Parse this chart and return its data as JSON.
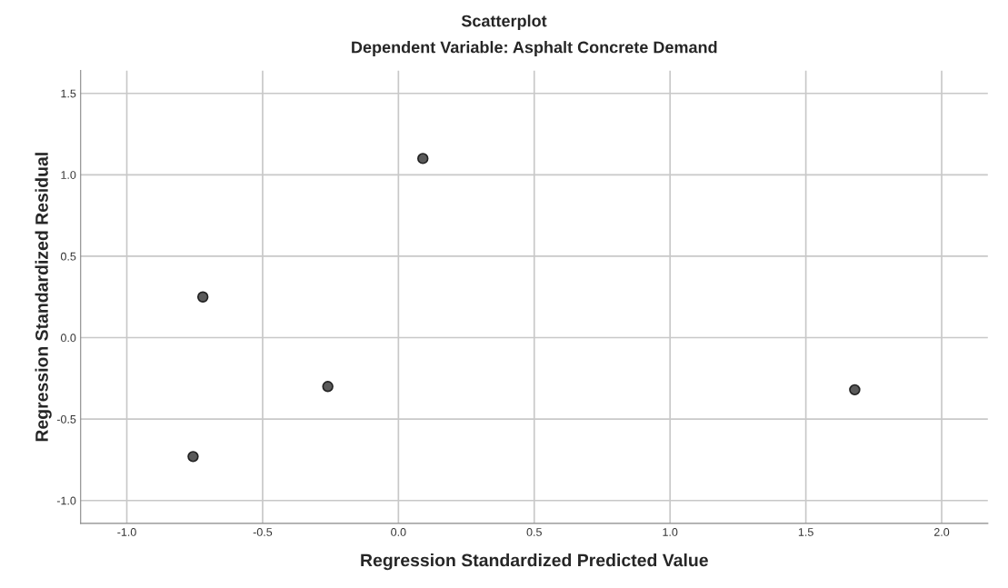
{
  "chart_data": {
    "type": "scatter",
    "title": "Scatterplot",
    "subtitle": "Dependent Variable: Asphalt Concrete Demand",
    "xlabel": "Regression Standardized Predicted Value",
    "ylabel": "Regression Standardized Residual",
    "x": [
      -0.72,
      -0.756,
      -0.26,
      0.09,
      1.68
    ],
    "series": [
      {
        "color": "#5a5a5a",
        "values": [
          0.25,
          -0.73,
          -0.3,
          1.1,
          -0.32
        ]
      }
    ],
    "xlim": [
      -1.17,
      2.17
    ],
    "ylim": [
      -1.14,
      1.64
    ],
    "xticks": [
      {
        "value": -1.0,
        "label": "-1.0"
      },
      {
        "value": -0.5,
        "label": "-0.5"
      },
      {
        "value": 0.0,
        "label": "0.0"
      },
      {
        "value": 0.5,
        "label": "0.5"
      },
      {
        "value": 1.0,
        "label": "1.0"
      },
      {
        "value": 1.5,
        "label": "1.5"
      },
      {
        "value": 2.0,
        "label": "2.0"
      }
    ],
    "yticks": [
      {
        "value": -1.0,
        "label": "-1.0"
      },
      {
        "value": -0.5,
        "label": "-0.5"
      },
      {
        "value": 0.0,
        "label": "0.0"
      },
      {
        "value": 0.5,
        "label": "0.5"
      },
      {
        "value": 1.0,
        "label": "1.0"
      },
      {
        "value": 1.5,
        "label": "1.5"
      }
    ],
    "grid": true,
    "marker": "circle",
    "legend": false
  }
}
